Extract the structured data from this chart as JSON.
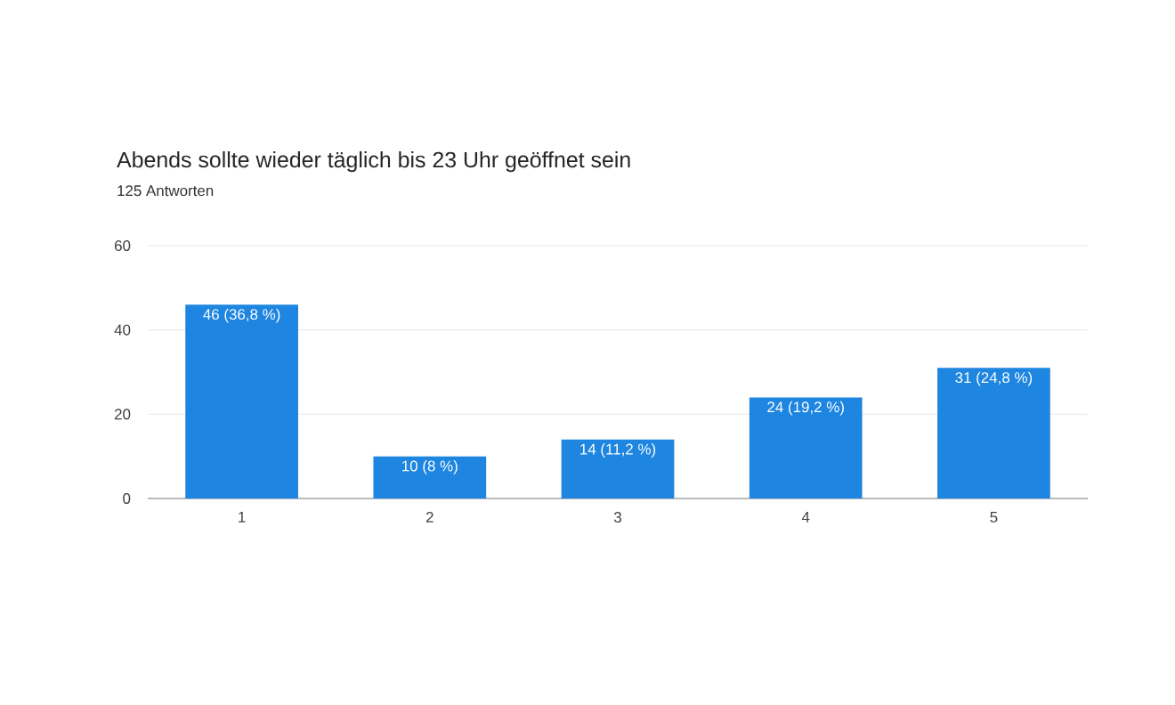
{
  "chart_data": {
    "type": "bar",
    "title": "Abends sollte wieder täglich bis 23 Uhr geöffnet sein",
    "subtitle": "125 Antworten",
    "categories": [
      "1",
      "2",
      "3",
      "4",
      "5"
    ],
    "values": [
      46,
      10,
      14,
      24,
      31
    ],
    "value_labels": [
      "46 (36,8 %)",
      "10 (8 %)",
      "14 (11,2 %)",
      "24 (19,2 %)",
      "31 (24,8 %)"
    ],
    "color": "#1e86e0",
    "ylim": [
      0,
      60
    ],
    "yticks": [
      0,
      20,
      40,
      60
    ],
    "grid": "y"
  }
}
